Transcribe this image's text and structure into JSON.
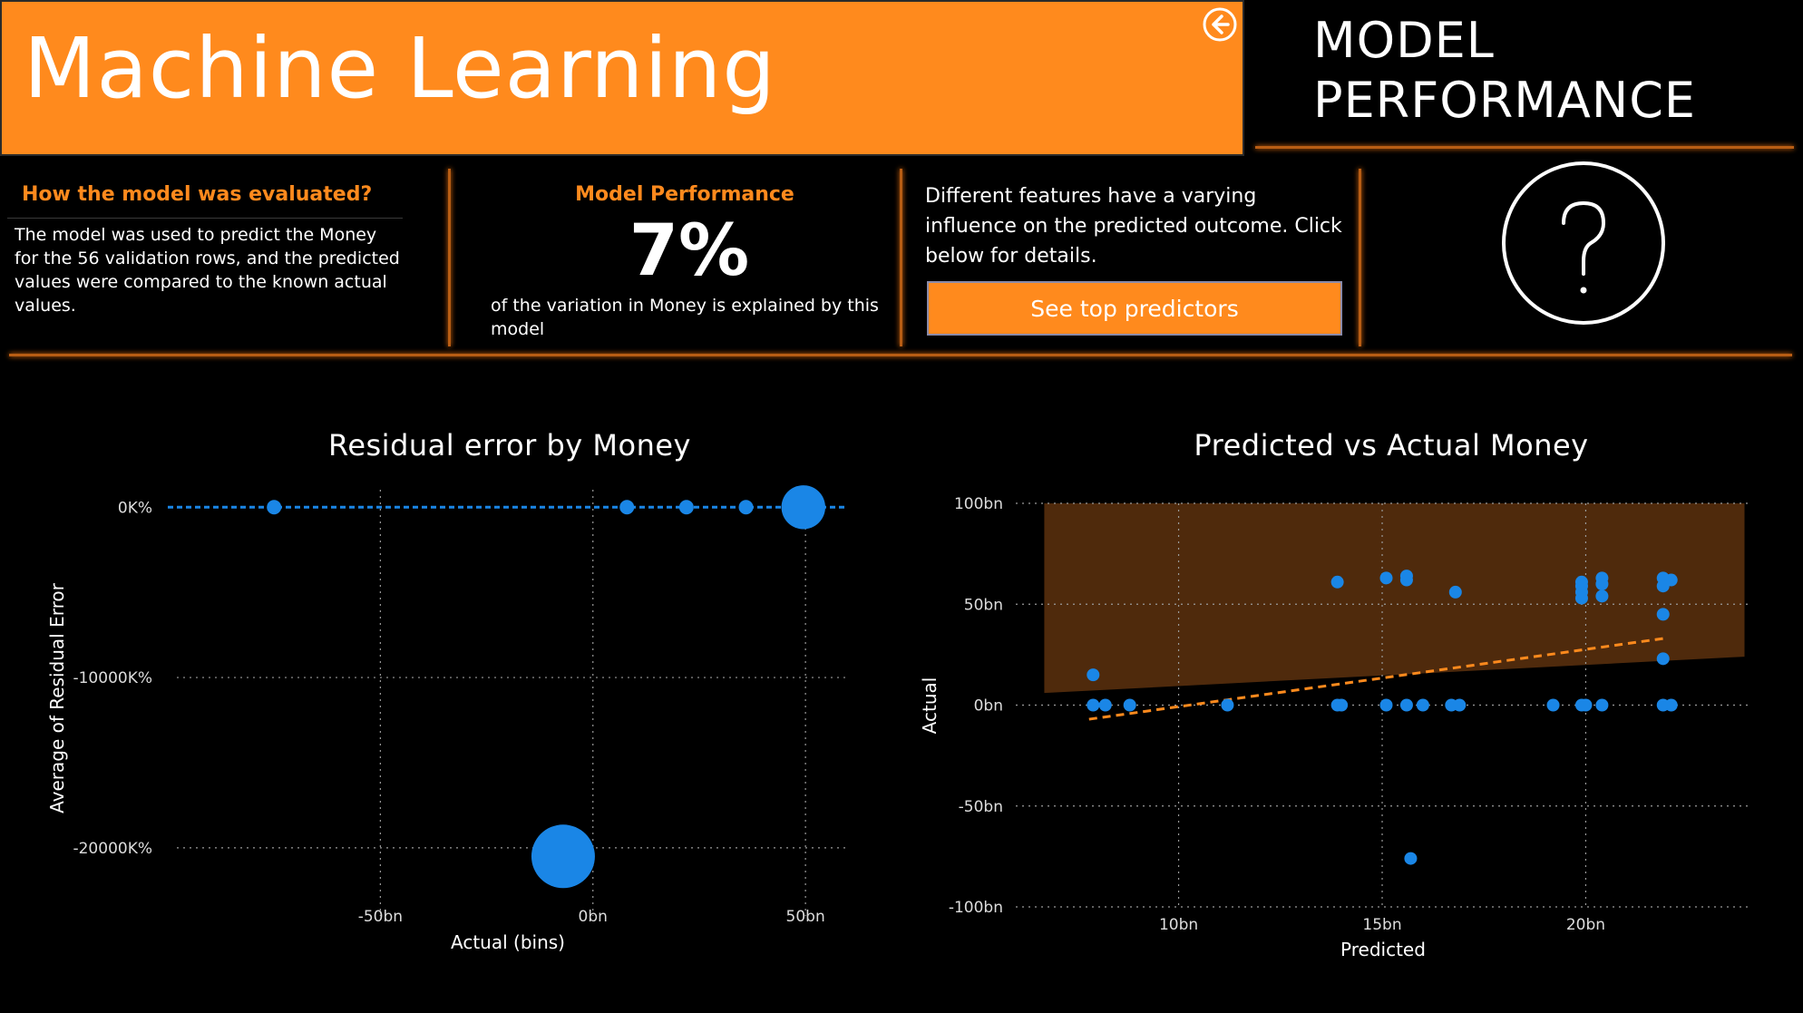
{
  "header": {
    "title": "Machine Learning",
    "section_title_line1": "MODEL",
    "section_title_line2": "PERFORMANCE",
    "back_icon": "arrow-left-circle-icon"
  },
  "evaluation": {
    "title": "How the model was evaluated?",
    "text": "The model was used to predict the Money for the 56 validation rows, and the predicted values were compared to the known actual values."
  },
  "performance": {
    "title": "Model Performance",
    "value": "7%",
    "caption": "of the variation in Money is explained by this model"
  },
  "predictors": {
    "text": "Different features have a varying influence on the predicted outcome. Click below for details.",
    "button_label": "See top predictors"
  },
  "help": {
    "icon": "question-mark-circle-icon"
  },
  "colors": {
    "accent": "#ff8a1d",
    "point": "#1a86e6",
    "band": "#4f2a0c",
    "trend": "#ff8a1d"
  },
  "chart_data": [
    {
      "type": "scatter",
      "title": "Residual error by Money",
      "xlabel": "Actual (bins)",
      "ylabel": "Average of Residual Error",
      "x_ticks": [
        {
          "value": -50,
          "label": "-50bn"
        },
        {
          "value": 0,
          "label": "0bn"
        },
        {
          "value": 50,
          "label": "50bn"
        }
      ],
      "y_ticks": [
        {
          "value": 0,
          "label": "0K%"
        },
        {
          "value": -10000,
          "label": "-10000K%"
        },
        {
          "value": -20000,
          "label": "-20000K%"
        }
      ],
      "xlim": [
        -100,
        60
      ],
      "ylim": [
        -24000,
        600
      ],
      "grid": true,
      "reference_line": 0,
      "points": [
        {
          "x": -75,
          "y": 0,
          "size": 1
        },
        {
          "x": -7,
          "y": -20500,
          "size": 6
        },
        {
          "x": 8,
          "y": 0,
          "size": 1
        },
        {
          "x": 22,
          "y": 0,
          "size": 1
        },
        {
          "x": 36,
          "y": 0,
          "size": 1
        },
        {
          "x": 49.5,
          "y": 0,
          "size": 4
        }
      ]
    },
    {
      "type": "scatter",
      "title": "Predicted vs Actual Money",
      "xlabel": "Predicted",
      "ylabel": "Actual",
      "x_ticks": [
        {
          "value": 10,
          "label": "10bn"
        },
        {
          "value": 15,
          "label": "15bn"
        },
        {
          "value": 20,
          "label": "20bn"
        }
      ],
      "y_ticks": [
        {
          "value": 100,
          "label": "100bn"
        },
        {
          "value": 50,
          "label": "50bn"
        },
        {
          "value": 0,
          "label": "0bn"
        },
        {
          "value": -50,
          "label": "-50bn"
        },
        {
          "value": -100,
          "label": "-100bn"
        }
      ],
      "xlim": [
        6,
        24
      ],
      "ylim": [
        -100,
        100
      ],
      "grid": true,
      "band": {
        "x": [
          6.7,
          23.9
        ],
        "upper": [
          100,
          100
        ],
        "lower": [
          6,
          24
        ]
      },
      "trend": {
        "x": [
          7.8,
          21.9
        ],
        "y": [
          -7,
          33
        ]
      },
      "points": [
        {
          "x": 7.9,
          "y": 15
        },
        {
          "x": 7.9,
          "y": 0
        },
        {
          "x": 8.2,
          "y": 0
        },
        {
          "x": 8.8,
          "y": 0
        },
        {
          "x": 11.2,
          "y": 0
        },
        {
          "x": 13.9,
          "y": 61
        },
        {
          "x": 13.9,
          "y": 0
        },
        {
          "x": 14.0,
          "y": 0
        },
        {
          "x": 15.1,
          "y": 63
        },
        {
          "x": 15.1,
          "y": 0
        },
        {
          "x": 15.6,
          "y": 64
        },
        {
          "x": 15.6,
          "y": 62
        },
        {
          "x": 15.6,
          "y": 0
        },
        {
          "x": 15.7,
          "y": -76
        },
        {
          "x": 16.0,
          "y": 0
        },
        {
          "x": 16.8,
          "y": 56
        },
        {
          "x": 16.7,
          "y": 0
        },
        {
          "x": 16.9,
          "y": 0
        },
        {
          "x": 19.2,
          "y": 0
        },
        {
          "x": 19.9,
          "y": 61
        },
        {
          "x": 19.9,
          "y": 59
        },
        {
          "x": 19.9,
          "y": 56
        },
        {
          "x": 19.9,
          "y": 53
        },
        {
          "x": 19.9,
          "y": 0
        },
        {
          "x": 20.0,
          "y": 0
        },
        {
          "x": 20.4,
          "y": 63
        },
        {
          "x": 20.4,
          "y": 60
        },
        {
          "x": 20.4,
          "y": 54
        },
        {
          "x": 20.4,
          "y": 0
        },
        {
          "x": 21.9,
          "y": 63
        },
        {
          "x": 22.1,
          "y": 62
        },
        {
          "x": 21.9,
          "y": 59
        },
        {
          "x": 21.9,
          "y": 45
        },
        {
          "x": 21.9,
          "y": 23
        },
        {
          "x": 21.9,
          "y": 0
        },
        {
          "x": 22.1,
          "y": 0
        }
      ]
    }
  ]
}
